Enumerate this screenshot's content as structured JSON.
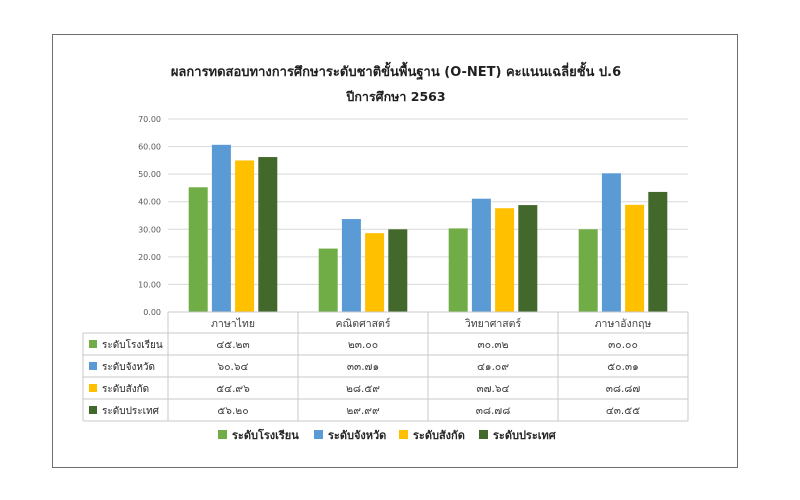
{
  "chart_data": {
    "type": "bar",
    "title": "ผลการทดสอบทางการศึกษาระดับชาติขั้นพื้นฐาน (O-NET) คะแนนเฉลี่ยชั้น ป.6",
    "subtitle": "ปีการศึกษา 2563",
    "xlabel": "",
    "ylabel": "",
    "ylim": [
      0,
      70
    ],
    "yticks": [
      "0.00",
      "10.00",
      "20.00",
      "30.00",
      "40.00",
      "50.00",
      "60.00",
      "70.00"
    ],
    "grid": true,
    "legend_position": "bottom",
    "categories": [
      "ภาษาไทย",
      "คณิตศาสตร์",
      "วิทยาศาสตร์",
      "ภาษาอังกฤษ"
    ],
    "series": [
      {
        "name": "ระดับโรงเรียน",
        "color": "#70ad47",
        "values": [
          45.23,
          23.0,
          30.32,
          30.0
        ],
        "labels": [
          "๔๕.๒๓",
          "๒๓.๐๐",
          "๓๐.๓๒",
          "๓๐.๐๐"
        ]
      },
      {
        "name": "ระดับจังหวัด",
        "color": "#5b9bd5",
        "values": [
          60.64,
          33.71,
          41.09,
          50.31
        ],
        "labels": [
          "๖๐.๖๔",
          "๓๓.๗๑",
          "๔๑.๐๙",
          "๕๐.๓๑"
        ]
      },
      {
        "name": "ระดับสังกัด",
        "color": "#ffc000",
        "values": [
          54.96,
          28.59,
          37.64,
          38.87
        ],
        "labels": [
          "๕๔.๙๖",
          "๒๘.๕๙",
          "๓๗.๖๔",
          "๓๘.๘๗"
        ]
      },
      {
        "name": "ระดับประเทศ",
        "color": "#43682b",
        "values": [
          56.2,
          29.99,
          38.78,
          43.55
        ],
        "labels": [
          "๕๖.๒๐",
          "๒๙.๙๙",
          "๓๘.๗๘",
          "๔๓.๕๕"
        ]
      }
    ]
  }
}
